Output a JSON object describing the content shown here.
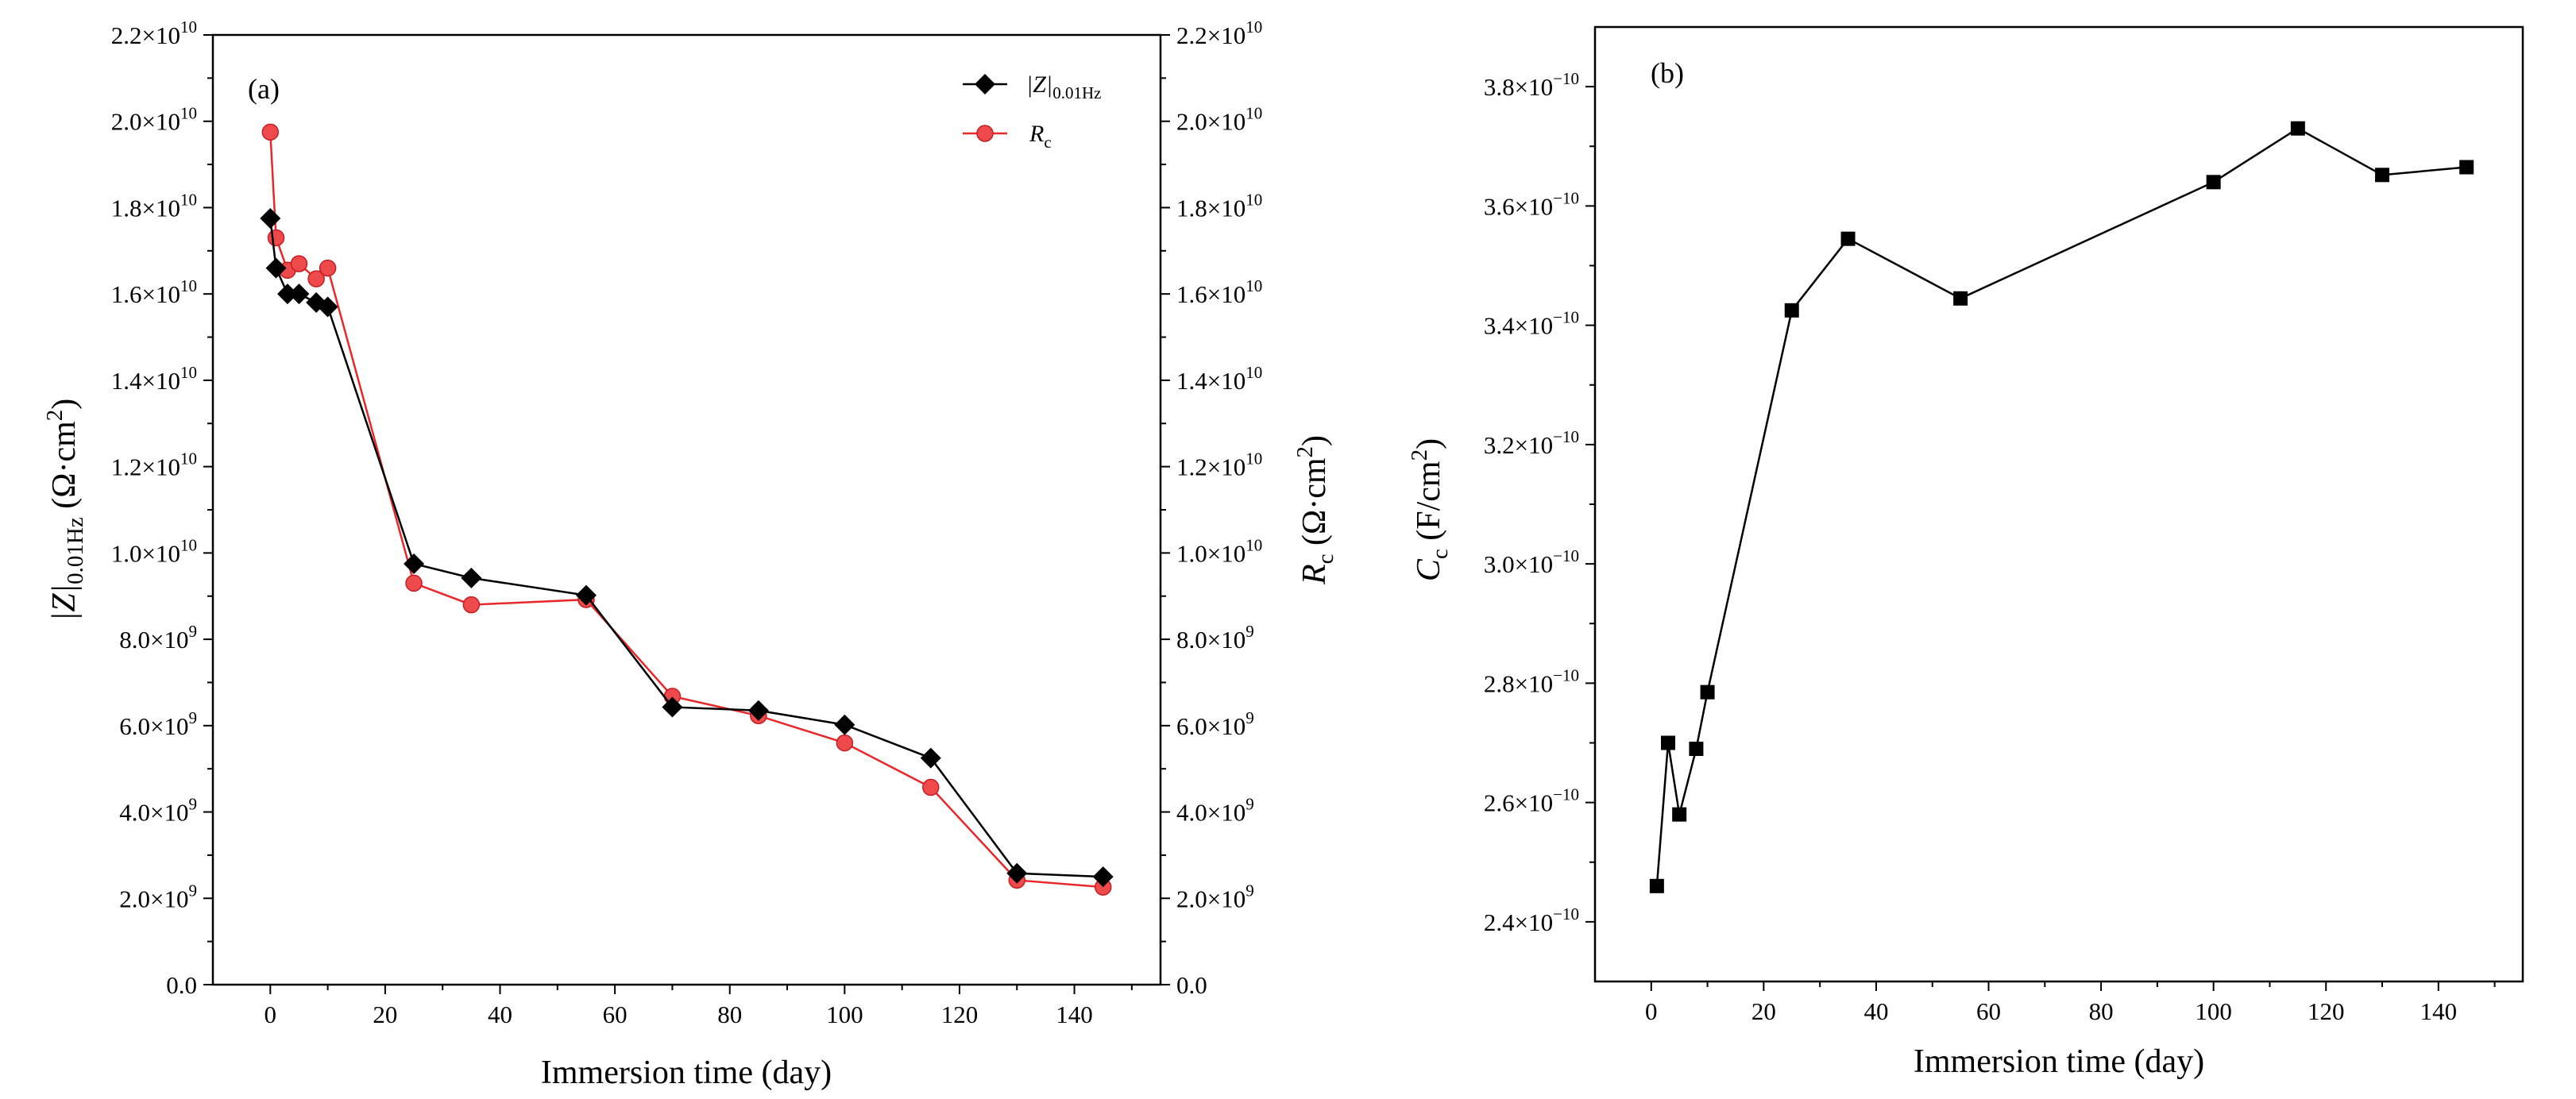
{
  "chart_data": [
    {
      "panel": "(a)",
      "type": "line",
      "xlabel": "Immersion time (day)",
      "ylabel_left": "|Z|0.01Hz (Ω·cm2)",
      "ylabel_right": "Rc (Ω·cm2)",
      "xlim": [
        -10,
        155
      ],
      "ylim": [
        0,
        22000000000
      ],
      "x_ticks": [
        0,
        20,
        40,
        60,
        80,
        100,
        120,
        140
      ],
      "x_tick_labels": [
        "0",
        "20",
        "40",
        "60",
        "80",
        "100",
        "120",
        "140"
      ],
      "y_ticks": [
        0,
        2000000000,
        4000000000,
        6000000000,
        8000000000,
        10000000000,
        12000000000,
        14000000000,
        16000000000,
        18000000000,
        20000000000,
        22000000000
      ],
      "y_tick_labels": [
        {
          "mant": "0.0",
          "exp": ""
        },
        {
          "mant": "2.0×10",
          "exp": "9"
        },
        {
          "mant": "4.0×10",
          "exp": "9"
        },
        {
          "mant": "6.0×10",
          "exp": "9"
        },
        {
          "mant": "8.0×10",
          "exp": "9"
        },
        {
          "mant": "1.0×10",
          "exp": "10"
        },
        {
          "mant": "1.2×10",
          "exp": "10"
        },
        {
          "mant": "1.4×10",
          "exp": "10"
        },
        {
          "mant": "1.6×10",
          "exp": "10"
        },
        {
          "mant": "1.8×10",
          "exp": "10"
        },
        {
          "mant": "2.0×10",
          "exp": "10"
        },
        {
          "mant": "2.2×10",
          "exp": "10"
        }
      ],
      "legend_position": "top-right",
      "series": [
        {
          "name": "|Z|0.01Hz",
          "color": "#000000",
          "marker": "diamond",
          "x": [
            0,
            1,
            3,
            5,
            8,
            10,
            25,
            35,
            55,
            70,
            85,
            100,
            115,
            130,
            145
          ],
          "values": [
            17750000000,
            16600000000,
            16000000000,
            16000000000,
            15800000000,
            15700000000,
            9750000000,
            9420000000,
            9020000000,
            6430000000,
            6350000000,
            6020000000,
            5250000000,
            2580000000,
            2500000000
          ]
        },
        {
          "name": "Rc",
          "color": "#e8282b",
          "marker": "circle",
          "x": [
            0,
            1,
            3,
            5,
            8,
            10,
            25,
            35,
            55,
            70,
            85,
            100,
            115,
            130,
            145
          ],
          "values": [
            19750000000,
            17300000000,
            16550000000,
            16700000000,
            16350000000,
            16600000000,
            9300000000,
            8800000000,
            8920000000,
            6680000000,
            6230000000,
            5600000000,
            4570000000,
            2420000000,
            2260000000
          ]
        }
      ]
    },
    {
      "panel": "(b)",
      "type": "line",
      "xlabel": "Immersion time (day)",
      "ylabel": "Cc (F/cm2)",
      "xlim": [
        -10,
        155
      ],
      "ylim": [
        2.3e-10,
        3.9e-10
      ],
      "x_ticks": [
        0,
        20,
        40,
        60,
        80,
        100,
        120,
        140
      ],
      "x_tick_labels": [
        "0",
        "20",
        "40",
        "60",
        "80",
        "100",
        "120",
        "140"
      ],
      "y_ticks": [
        2.4e-10,
        2.6e-10,
        2.8e-10,
        3e-10,
        3.2e-10,
        3.4e-10,
        3.6e-10,
        3.8e-10
      ],
      "y_tick_labels": [
        {
          "mant": "2.4×10",
          "exp": "−10"
        },
        {
          "mant": "2.6×10",
          "exp": "−10"
        },
        {
          "mant": "2.8×10",
          "exp": "−10"
        },
        {
          "mant": "3.0×10",
          "exp": "−10"
        },
        {
          "mant": "3.2×10",
          "exp": "−10"
        },
        {
          "mant": "3.4×10",
          "exp": "−10"
        },
        {
          "mant": "3.6×10",
          "exp": "−10"
        },
        {
          "mant": "3.8×10",
          "exp": "−10"
        }
      ],
      "series": [
        {
          "name": "Cc",
          "color": "#000000",
          "marker": "square",
          "x": [
            1,
            3,
            5,
            8,
            10,
            25,
            35,
            55,
            100,
            115,
            130,
            145
          ],
          "values": [
            2.46e-10,
            2.7e-10,
            2.58e-10,
            2.69e-10,
            2.785e-10,
            3.425e-10,
            3.545e-10,
            3.445e-10,
            3.64e-10,
            3.73e-10,
            3.652e-10,
            3.665e-10
          ]
        }
      ]
    }
  ],
  "labels": {
    "panel_a": "(a)",
    "panel_b": "(b)",
    "xlabel_a": "Immersion time (day)",
    "xlabel_b": "Immersion time (day)",
    "ylabel_a_main": "|Z|",
    "ylabel_a_sub": "0.01Hz",
    "ylabel_a_unit": " (Ω·cm",
    "ylabel_a_sup": "2",
    "ylabel_a_close": ")",
    "ylabel_r_main": "R",
    "ylabel_r_sub": "c",
    "ylabel_r_unit": " (Ω·cm",
    "ylabel_r_sup": "2",
    "ylabel_r_close": ")",
    "ylabel_b_main": "C",
    "ylabel_b_sub": "c",
    "ylabel_b_unit": " (F/cm",
    "ylabel_b_sup": "2",
    "ylabel_b_close": ")",
    "legend_z_main": "|Z|",
    "legend_z_sub": "0.01Hz",
    "legend_r_main": "R",
    "legend_r_sub": "c"
  }
}
